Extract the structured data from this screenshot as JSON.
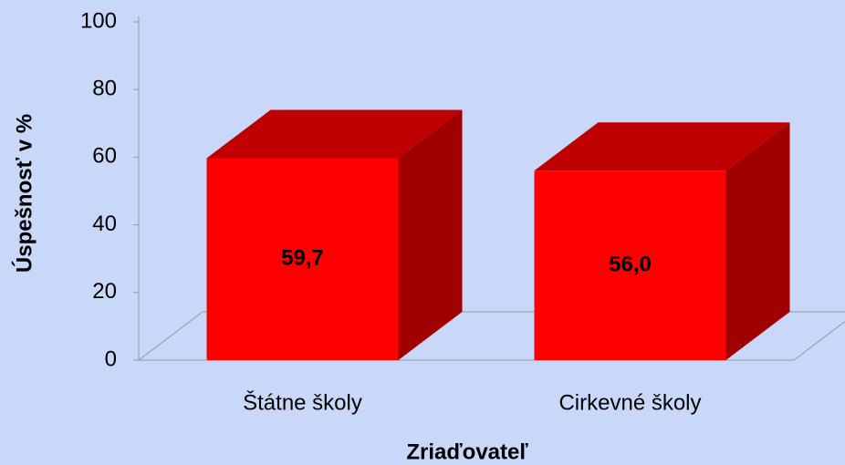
{
  "chart_data": {
    "type": "bar3d",
    "categories": [
      "Štátne školy",
      "Cirkevné školy"
    ],
    "values": [
      59.7,
      56.0
    ],
    "value_labels": [
      "59,7",
      "56,0"
    ],
    "color": "#ff0000",
    "xlabel": "Zriaďovateľ",
    "ylabel": "Úspešnosť v %",
    "ylim": [
      0,
      100
    ],
    "yticks": [
      0,
      20,
      40,
      60,
      80,
      100
    ],
    "grid": false
  }
}
